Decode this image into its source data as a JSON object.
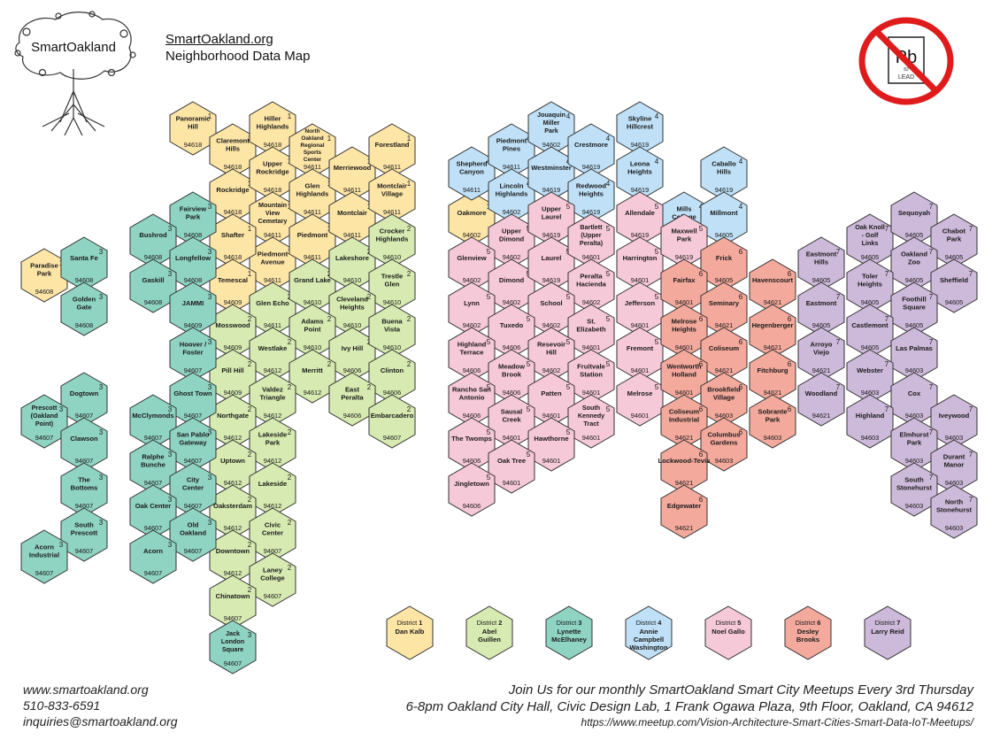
{
  "logo": {
    "text": "SmartOakland"
  },
  "header": {
    "link": "SmartOakland.org",
    "title": "Neighborhood Data Map"
  },
  "lead_badge": {
    "symbol": "Pb",
    "number": "82",
    "name": "LEAD"
  },
  "colors": {
    "1": "#fde5a6",
    "2": "#d7eab1",
    "3": "#8fd3c2",
    "4": "#bfe0f6",
    "5": "#f6c9d8",
    "6": "#f3a99c",
    "7": "#cdb9d9",
    "stroke": "#333333",
    "no_sign": "#e01b1b"
  },
  "neighborhoods": [
    {
      "id": "panoramic-hill",
      "name": "Panoramic Hill",
      "district": "1",
      "zip": "94618"
    },
    {
      "id": "claremont-hills",
      "name": "Claremont Hills",
      "district": "1",
      "zip": "94618"
    },
    {
      "id": "rockridge",
      "name": "Rockridge",
      "district": "1",
      "zip": "94618"
    },
    {
      "id": "hiller-highlands",
      "name": "Hiller Highlands",
      "district": "1",
      "zip": "94618"
    },
    {
      "id": "upper-rockridge",
      "name": "Upper Rockridge",
      "district": "1",
      "zip": "94618"
    },
    {
      "id": "mountain-view-cemetary",
      "name": "Mountain View Cemetary",
      "district": "1",
      "zip": "94611"
    },
    {
      "id": "piedmont-avenue",
      "name": "Piedmont Avenue",
      "district": "1",
      "zip": "94611"
    },
    {
      "id": "north-oakland-regional-sports-center",
      "name": "North Oakland Regional Sports Center",
      "district": "1",
      "zip": "94611"
    },
    {
      "id": "glen-highlands",
      "name": "Glen Highlands",
      "district": "1",
      "zip": "94611"
    },
    {
      "id": "piedmont",
      "name": "Piedmont",
      "district": "1",
      "zip": "94611"
    },
    {
      "id": "merriewood",
      "name": "Merriewood",
      "district": "1",
      "zip": "94611"
    },
    {
      "id": "montclair",
      "name": "Montclair",
      "district": "1",
      "zip": "94611"
    },
    {
      "id": "forestland",
      "name": "Forestland",
      "district": "1",
      "zip": "94611"
    },
    {
      "id": "montclair-village",
      "name": "Montclair Village",
      "district": "1",
      "zip": "94611"
    },
    {
      "id": "shafter",
      "name": "Shafter",
      "district": "1",
      "zip": "94618"
    },
    {
      "id": "temescal",
      "name": "Temescal",
      "district": "1",
      "zip": "94609"
    },
    {
      "id": "paradise-park",
      "name": "Paradise Park",
      "district": "1",
      "zip": "94608"
    },
    {
      "id": "oakmore",
      "name": "Oakmore",
      "district": "1",
      "zip": "94602"
    },
    {
      "id": "glen-echo",
      "name": "Glen Echo",
      "district": "2",
      "zip": "94611"
    },
    {
      "id": "mosswood",
      "name": "Mosswood",
      "district": "2",
      "zip": "94609"
    },
    {
      "id": "grand-lake",
      "name": "Grand Lake",
      "district": "2",
      "zip": "94610"
    },
    {
      "id": "lakeshore",
      "name": "Lakeshore",
      "district": "2",
      "zip": "94610"
    },
    {
      "id": "crocker-highlands",
      "name": "Crocker Highlands",
      "district": "2",
      "zip": "94610"
    },
    {
      "id": "trestle-glen",
      "name": "Trestle Glen",
      "district": "2",
      "zip": "94610"
    },
    {
      "id": "cleveland-heights",
      "name": "Cleveland Heights",
      "district": "2",
      "zip": "94610"
    },
    {
      "id": "adams-point",
      "name": "Adams Point",
      "district": "2",
      "zip": "94610"
    },
    {
      "id": "westlake",
      "name": "Westlake",
      "district": "2",
      "zip": "94612"
    },
    {
      "id": "pill-hill",
      "name": "Pill Hill",
      "district": "2",
      "zip": "94609"
    },
    {
      "id": "ivy-hill",
      "name": "Ivy Hill",
      "district": "2",
      "zip": "94606"
    },
    {
      "id": "buena-vista",
      "name": "Buena Vista",
      "district": "2",
      "zip": "94610"
    },
    {
      "id": "merritt",
      "name": "Merritt",
      "district": "2",
      "zip": "94612"
    },
    {
      "id": "clinton",
      "name": "Clinton",
      "district": "2",
      "zip": "94606"
    },
    {
      "id": "valdez-triangle",
      "name": "Valdez Triangle",
      "district": "2",
      "zip": "94612"
    },
    {
      "id": "east-peralta",
      "name": "East Peralta",
      "district": "2",
      "zip": "94606"
    },
    {
      "id": "embarcadero",
      "name": "Embarcadero",
      "district": "2",
      "zip": "94607"
    },
    {
      "id": "northgate",
      "name": "Northgate",
      "district": "2",
      "zip": "94612"
    },
    {
      "id": "lakeside-park",
      "name": "Lakeside Park",
      "district": "2",
      "zip": "94612"
    },
    {
      "id": "uptown",
      "name": "Uptown",
      "district": "2",
      "zip": "94612"
    },
    {
      "id": "lakeside",
      "name": "Lakeside",
      "district": "2",
      "zip": "94612"
    },
    {
      "id": "oaksterdam",
      "name": "Oaksterdam",
      "district": "2",
      "zip": "94612"
    },
    {
      "id": "civic-center",
      "name": "Civic Center",
      "district": "2",
      "zip": "94607"
    },
    {
      "id": "downtown",
      "name": "Downtown",
      "district": "2",
      "zip": "94612"
    },
    {
      "id": "laney-college",
      "name": "Laney College",
      "district": "2",
      "zip": "94607"
    },
    {
      "id": "chinatown",
      "name": "Chinatown",
      "district": "2",
      "zip": "94607"
    },
    {
      "id": "fairview-park",
      "name": "Fairview Park",
      "district": "3",
      "zip": "94608"
    },
    {
      "id": "bushrod",
      "name": "Bushrod",
      "district": "3",
      "zip": "94608"
    },
    {
      "id": "longfellow",
      "name": "Longfellow",
      "district": "3",
      "zip": "94608"
    },
    {
      "id": "santa-fe",
      "name": "Santa Fe",
      "district": "3",
      "zip": "94608"
    },
    {
      "id": "gaskill",
      "name": "Gaskill",
      "district": "3",
      "zip": "94608"
    },
    {
      "id": "golden-gate",
      "name": "Golden Gate",
      "district": "3",
      "zip": "94608"
    },
    {
      "id": "jammi",
      "name": "JAMMI",
      "district": "3",
      "zip": "94609"
    },
    {
      "id": "hoover-foster",
      "name": "Hoover / Foster",
      "district": "3",
      "zip": "94607"
    },
    {
      "id": "ghost-town",
      "name": "Ghost Town",
      "district": "3",
      "zip": "94607"
    },
    {
      "id": "dogtown",
      "name": "Dogtown",
      "district": "3",
      "zip": "94607"
    },
    {
      "id": "prescott",
      "name": "Prescott (Oakland Point)",
      "district": "3",
      "zip": "94607"
    },
    {
      "id": "mcclymonds",
      "name": "McClymonds",
      "district": "3",
      "zip": "94607"
    },
    {
      "id": "clawson",
      "name": "Clawson",
      "district": "3",
      "zip": "94607"
    },
    {
      "id": "san-pablo-gateway",
      "name": "San Pablo Gateway",
      "district": "3",
      "zip": "94607"
    },
    {
      "id": "ralphe-bunche",
      "name": "Ralphe Bunche",
      "district": "3",
      "zip": "94607"
    },
    {
      "id": "the-bottoms",
      "name": "The Bottoms",
      "district": "3",
      "zip": "94607"
    },
    {
      "id": "city-center",
      "name": "City Center",
      "district": "3",
      "zip": "94607"
    },
    {
      "id": "oak-center",
      "name": "Oak Center",
      "district": "3",
      "zip": "94607"
    },
    {
      "id": "south-prescott",
      "name": "South Prescott",
      "district": "3",
      "zip": "94607"
    },
    {
      "id": "old-oakland",
      "name": "Old Oakland",
      "district": "3",
      "zip": "94607"
    },
    {
      "id": "acorn-industrial",
      "name": "Acorn Industrial",
      "district": "3",
      "zip": "94607"
    },
    {
      "id": "acorn",
      "name": "Acorn",
      "district": "3",
      "zip": "94607"
    },
    {
      "id": "jack-london-square",
      "name": "Jack London Square",
      "district": "3",
      "zip": "94607"
    },
    {
      "id": "shepherd-canyon",
      "name": "Shepherd Canyon",
      "district": "4",
      "zip": "94611"
    },
    {
      "id": "piedmont-pines",
      "name": "Piedmont Pines",
      "district": "4",
      "zip": "94611"
    },
    {
      "id": "lincoln-highlands",
      "name": "Lincoln Highlands",
      "district": "4",
      "zip": "94602"
    },
    {
      "id": "jouaquin-miller-park",
      "name": "Jouaquin Miller Park",
      "district": "4",
      "zip": "94602"
    },
    {
      "id": "westminster",
      "name": "Westminster",
      "district": "4",
      "zip": "94619"
    },
    {
      "id": "crestmore",
      "name": "Crestmore",
      "district": "4",
      "zip": "94619"
    },
    {
      "id": "redwood-heights",
      "name": "Redwood Heights",
      "district": "4",
      "zip": "94619"
    },
    {
      "id": "skyline-hillcrest",
      "name": "Skyline Hillcrest",
      "district": "4",
      "zip": "94619"
    },
    {
      "id": "leona-heights",
      "name": "Leona Heights",
      "district": "4",
      "zip": "94619"
    },
    {
      "id": "mills-college",
      "name": "Mills College",
      "district": "4",
      "zip": "94619"
    },
    {
      "id": "caballo-hills",
      "name": "Caballo Hills",
      "district": "4",
      "zip": "94619"
    },
    {
      "id": "millmont",
      "name": "Millmont",
      "district": "4",
      "zip": "94605"
    },
    {
      "id": "upper-dimond",
      "name": "Upper Dimond",
      "district": "5",
      "zip": "94602"
    },
    {
      "id": "glenview",
      "name": "Glenview",
      "district": "5",
      "zip": "94602"
    },
    {
      "id": "dimond",
      "name": "Dimond",
      "district": "5",
      "zip": "94602"
    },
    {
      "id": "lynn",
      "name": "Lynn",
      "district": "5",
      "zip": "94602"
    },
    {
      "id": "upper-laurel",
      "name": "Upper Laurel",
      "district": "5",
      "zip": "94619"
    },
    {
      "id": "laurel",
      "name": "Laurel",
      "district": "5",
      "zip": "94619"
    },
    {
      "id": "bartlett",
      "name": "Bartlett (Upper Peralta)",
      "district": "5",
      "zip": "94601"
    },
    {
      "id": "allendale",
      "name": "Allendale",
      "district": "5",
      "zip": "94619"
    },
    {
      "id": "peralta-hacienda",
      "name": "Peralta Hacienda",
      "district": "5",
      "zip": "94602"
    },
    {
      "id": "harrington",
      "name": "Harrington",
      "district": "5",
      "zip": "94601"
    },
    {
      "id": "maxwell-park",
      "name": "Maxwell Park",
      "district": "5",
      "zip": "94619"
    },
    {
      "id": "school",
      "name": "School",
      "district": "5",
      "zip": "94602"
    },
    {
      "id": "jefferson",
      "name": "Jefferson",
      "district": "5",
      "zip": "94601"
    },
    {
      "id": "tuxedo",
      "name": "Tuxedo",
      "district": "5",
      "zip": "94606"
    },
    {
      "id": "st-elizabeth",
      "name": "St. Elizabeth",
      "district": "5",
      "zip": "94601"
    },
    {
      "id": "highland-terrace",
      "name": "Highland Terrace",
      "district": "5",
      "zip": "94606"
    },
    {
      "id": "resevoir-hill",
      "name": "Resevoir Hill",
      "district": "5",
      "zip": "94602"
    },
    {
      "id": "fremont",
      "name": "Fremont",
      "district": "5",
      "zip": "94601"
    },
    {
      "id": "meadow-brook",
      "name": "Meadow Brook",
      "district": "5",
      "zip": "94606"
    },
    {
      "id": "fruitvale-station",
      "name": "Fruitvale Station",
      "district": "5",
      "zip": "94601"
    },
    {
      "id": "rancho-san-antonio",
      "name": "Rancho San Antonio",
      "district": "5",
      "zip": "94606"
    },
    {
      "id": "patten",
      "name": "Patten",
      "district": "5",
      "zip": "94601"
    },
    {
      "id": "melrose",
      "name": "Melrose",
      "district": "5",
      "zip": "94601"
    },
    {
      "id": "sausal-creek",
      "name": "Sausal Creek",
      "district": "5",
      "zip": "94601"
    },
    {
      "id": "south-kennedy-tract",
      "name": "South Kennedy Tract",
      "district": "5",
      "zip": "94601"
    },
    {
      "id": "the-twomps",
      "name": "The Twomps",
      "district": "5",
      "zip": "94606"
    },
    {
      "id": "hawthorne",
      "name": "Hawthorne",
      "district": "5",
      "zip": "94601"
    },
    {
      "id": "oak-tree",
      "name": "Oak Tree",
      "district": "5",
      "zip": "94601"
    },
    {
      "id": "jingletown",
      "name": "Jingletown",
      "district": "5",
      "zip": "94606"
    },
    {
      "id": "frick",
      "name": "Frick",
      "district": "6",
      "zip": "94605"
    },
    {
      "id": "fairfax",
      "name": "Fairfax",
      "district": "6",
      "zip": "94601"
    },
    {
      "id": "seminary",
      "name": "Seminary",
      "district": "6",
      "zip": "94621"
    },
    {
      "id": "havenscourt",
      "name": "Havenscourt",
      "district": "6",
      "zip": "94621"
    },
    {
      "id": "melrose-heights",
      "name": "Melrose Heights",
      "district": "6",
      "zip": "94601"
    },
    {
      "id": "hegenberger",
      "name": "Hegenberger",
      "district": "6",
      "zip": "94621"
    },
    {
      "id": "coliseum",
      "name": "Coliseum",
      "district": "6",
      "zip": "94621"
    },
    {
      "id": "wentworth-holland",
      "name": "Wentworth Holland",
      "district": "6",
      "zip": "94601"
    },
    {
      "id": "fitchburg",
      "name": "Fitchburg",
      "district": "6",
      "zip": "94621"
    },
    {
      "id": "brookfield-village",
      "name": "Brookfield Village",
      "district": "6",
      "zip": "94603"
    },
    {
      "id": "coliseum-industrial",
      "name": "Coliseum Industrial",
      "district": "6",
      "zip": "94621"
    },
    {
      "id": "sobrante-park",
      "name": "Sobrante Park",
      "district": "6",
      "zip": "94603"
    },
    {
      "id": "columbus-gardens",
      "name": "Columbus Gardens",
      "district": "6",
      "zip": "94603"
    },
    {
      "id": "lockwood-tevis",
      "name": "Lockwood-Tevis",
      "district": "6",
      "zip": "94621"
    },
    {
      "id": "edgewater",
      "name": "Edgewater",
      "district": "6",
      "zip": "94621"
    },
    {
      "id": "eastmont-hills",
      "name": "Eastmont Hills",
      "district": "7",
      "zip": "94605"
    },
    {
      "id": "oak-knoll",
      "name": "Oak Knoll - Golf Links",
      "district": "7",
      "zip": "94605"
    },
    {
      "id": "sequoyah",
      "name": "Sequoyah",
      "district": "7",
      "zip": "94605"
    },
    {
      "id": "chabot-park",
      "name": "Chabot Park",
      "district": "7",
      "zip": "94605"
    },
    {
      "id": "oakland-zoo",
      "name": "Oakland Zoo",
      "district": "7",
      "zip": "94605"
    },
    {
      "id": "toler-heights",
      "name": "Toler Heights",
      "district": "7",
      "zip": "94605"
    },
    {
      "id": "sheffield",
      "name": "Sheffield",
      "district": "7",
      "zip": "94605"
    },
    {
      "id": "eastmont",
      "name": "Eastmont",
      "district": "7",
      "zip": "94605"
    },
    {
      "id": "foothill-square",
      "name": "Foothill Square",
      "district": "7",
      "zip": "94605"
    },
    {
      "id": "castlemont",
      "name": "Castlemont",
      "district": "7",
      "zip": "94605"
    },
    {
      "id": "arroyo-viejo",
      "name": "Arroyo Viejo",
      "district": "7",
      "zip": "94621"
    },
    {
      "id": "las-palmas",
      "name": "Las Palmas",
      "district": "7",
      "zip": "94603"
    },
    {
      "id": "webster",
      "name": "Webster",
      "district": "7",
      "zip": "94603"
    },
    {
      "id": "woodland",
      "name": "Woodland",
      "district": "7",
      "zip": "94621"
    },
    {
      "id": "cox",
      "name": "Cox",
      "district": "7",
      "zip": "94603"
    },
    {
      "id": "highland",
      "name": "Highland",
      "district": "7",
      "zip": "94603"
    },
    {
      "id": "iveywood",
      "name": "Iveywood",
      "district": "7",
      "zip": "94603"
    },
    {
      "id": "elmhurst-park",
      "name": "Elmhurst Park",
      "district": "7",
      "zip": "94603"
    },
    {
      "id": "durant-manor",
      "name": "Durant Manor",
      "district": "7",
      "zip": "94603"
    },
    {
      "id": "south-stonehurst",
      "name": "South Stonehurst",
      "district": "7",
      "zip": "94603"
    },
    {
      "id": "north-stonehurst",
      "name": "North Stonehurst",
      "district": "7",
      "zip": "94603"
    }
  ],
  "legend": [
    {
      "district": "1",
      "district_label": "District",
      "number": "1",
      "member": "Dan Kalb"
    },
    {
      "district": "2",
      "district_label": "District",
      "number": "2",
      "member": "Abel Guillen"
    },
    {
      "district": "3",
      "district_label": "District",
      "number": "3",
      "member": "Lynette McElhaney"
    },
    {
      "district": "4",
      "district_label": "District",
      "number": "4",
      "member": "Annie Campbell Washington"
    },
    {
      "district": "5",
      "district_label": "District",
      "number": "5",
      "member": "Noel Gallo"
    },
    {
      "district": "6",
      "district_label": "District",
      "number": "6",
      "member": "Desley Brooks"
    },
    {
      "district": "7",
      "district_label": "District",
      "number": "7",
      "member": "Larry Reid"
    }
  ],
  "footer": {
    "website": "www.smartoakland.org",
    "phone": "510-833-6591",
    "email": "inquiries@smartoakland.org",
    "meetup_line1": "Join Us for our monthly SmartOakland Smart City Meetups Every 3rd Thursday",
    "meetup_line2": "6-8pm Oakland City Hall, Civic Design Lab, 1 Frank Ogawa Plaza, 9th Floor, Oakland, CA 94612",
    "meetup_url": "https://www.meetup.com/Vision-Architecture-Smart-Cities-Smart-Data-IoT-Meetups/"
  }
}
